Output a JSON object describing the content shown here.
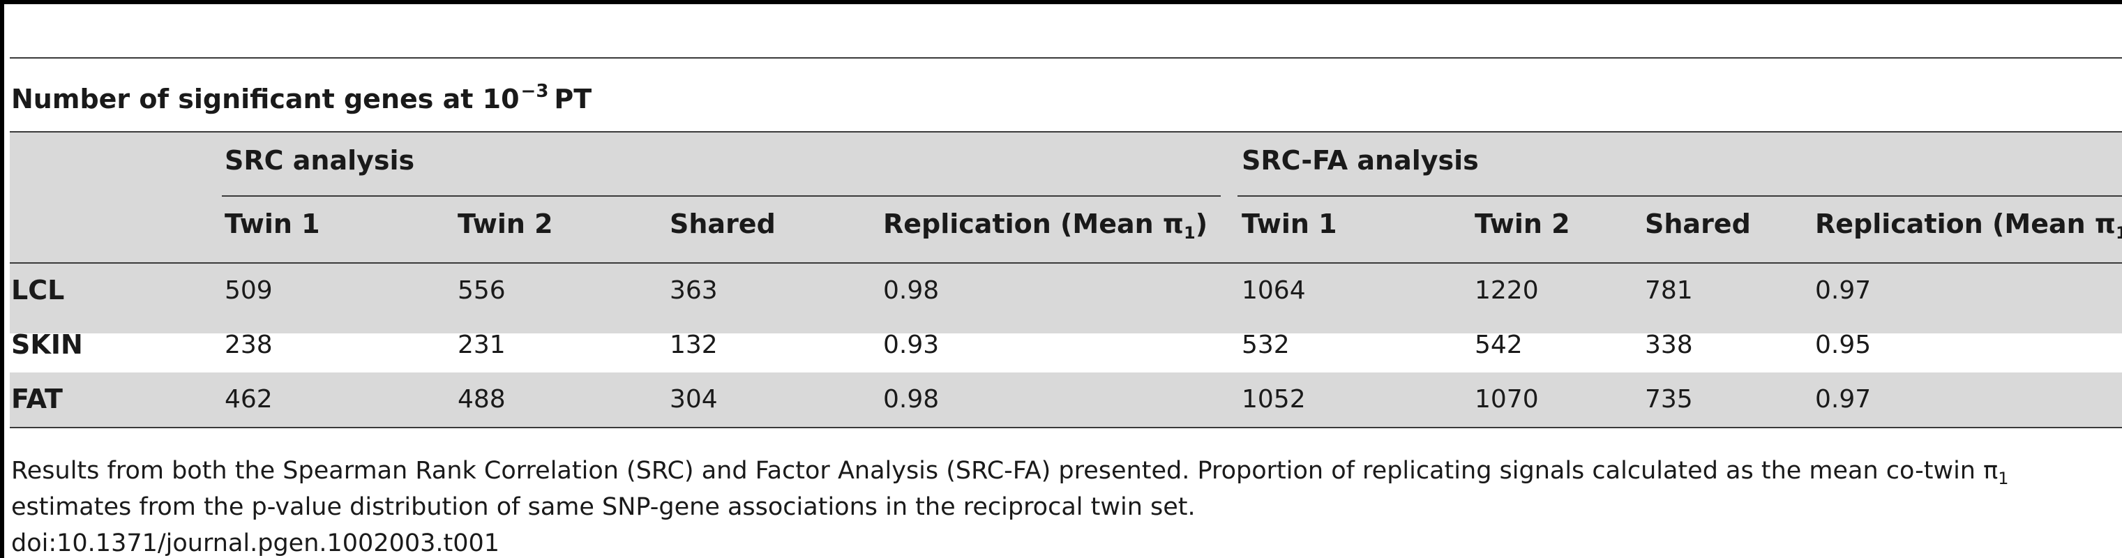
{
  "table": {
    "title": "Number of significant genes at 10",
    "title_exponent": "−3",
    "title_suffix": "PT",
    "groups": [
      "SRC analysis",
      "SRC-FA analysis"
    ],
    "subheaders": [
      "Twin 1",
      "Twin 2",
      "Shared",
      "Replication (Mean π",
      "Twin 1",
      "Twin 2",
      "Shared",
      "Replication (Mean π"
    ],
    "subheader_pi_subscript": "1",
    "subheader_close": ")",
    "rows": [
      {
        "label": "LCL",
        "values": [
          "509",
          "556",
          "363",
          "0.98",
          "1064",
          "1220",
          "781",
          "0.97"
        ]
      },
      {
        "label": "SKIN",
        "values": [
          "238",
          "231",
          "132",
          "0.93",
          "532",
          "542",
          "338",
          "0.95"
        ]
      },
      {
        "label": "FAT",
        "values": [
          "462",
          "488",
          "304",
          "0.98",
          "1052",
          "1070",
          "735",
          "0.97"
        ]
      }
    ]
  },
  "footnote": {
    "line1": "Results from both the Spearman Rank Correlation (SRC) and Factor Analysis (SRC-FA) presented. Proportion of replicating signals calculated as the mean co-twin π",
    "line1_subscript": "1",
    "line2": "estimates from the p-value distribution of same SNP-gene associations in the reciprocal twin set.",
    "doi": "doi:10.1371/journal.pgen.1002003.t001"
  }
}
